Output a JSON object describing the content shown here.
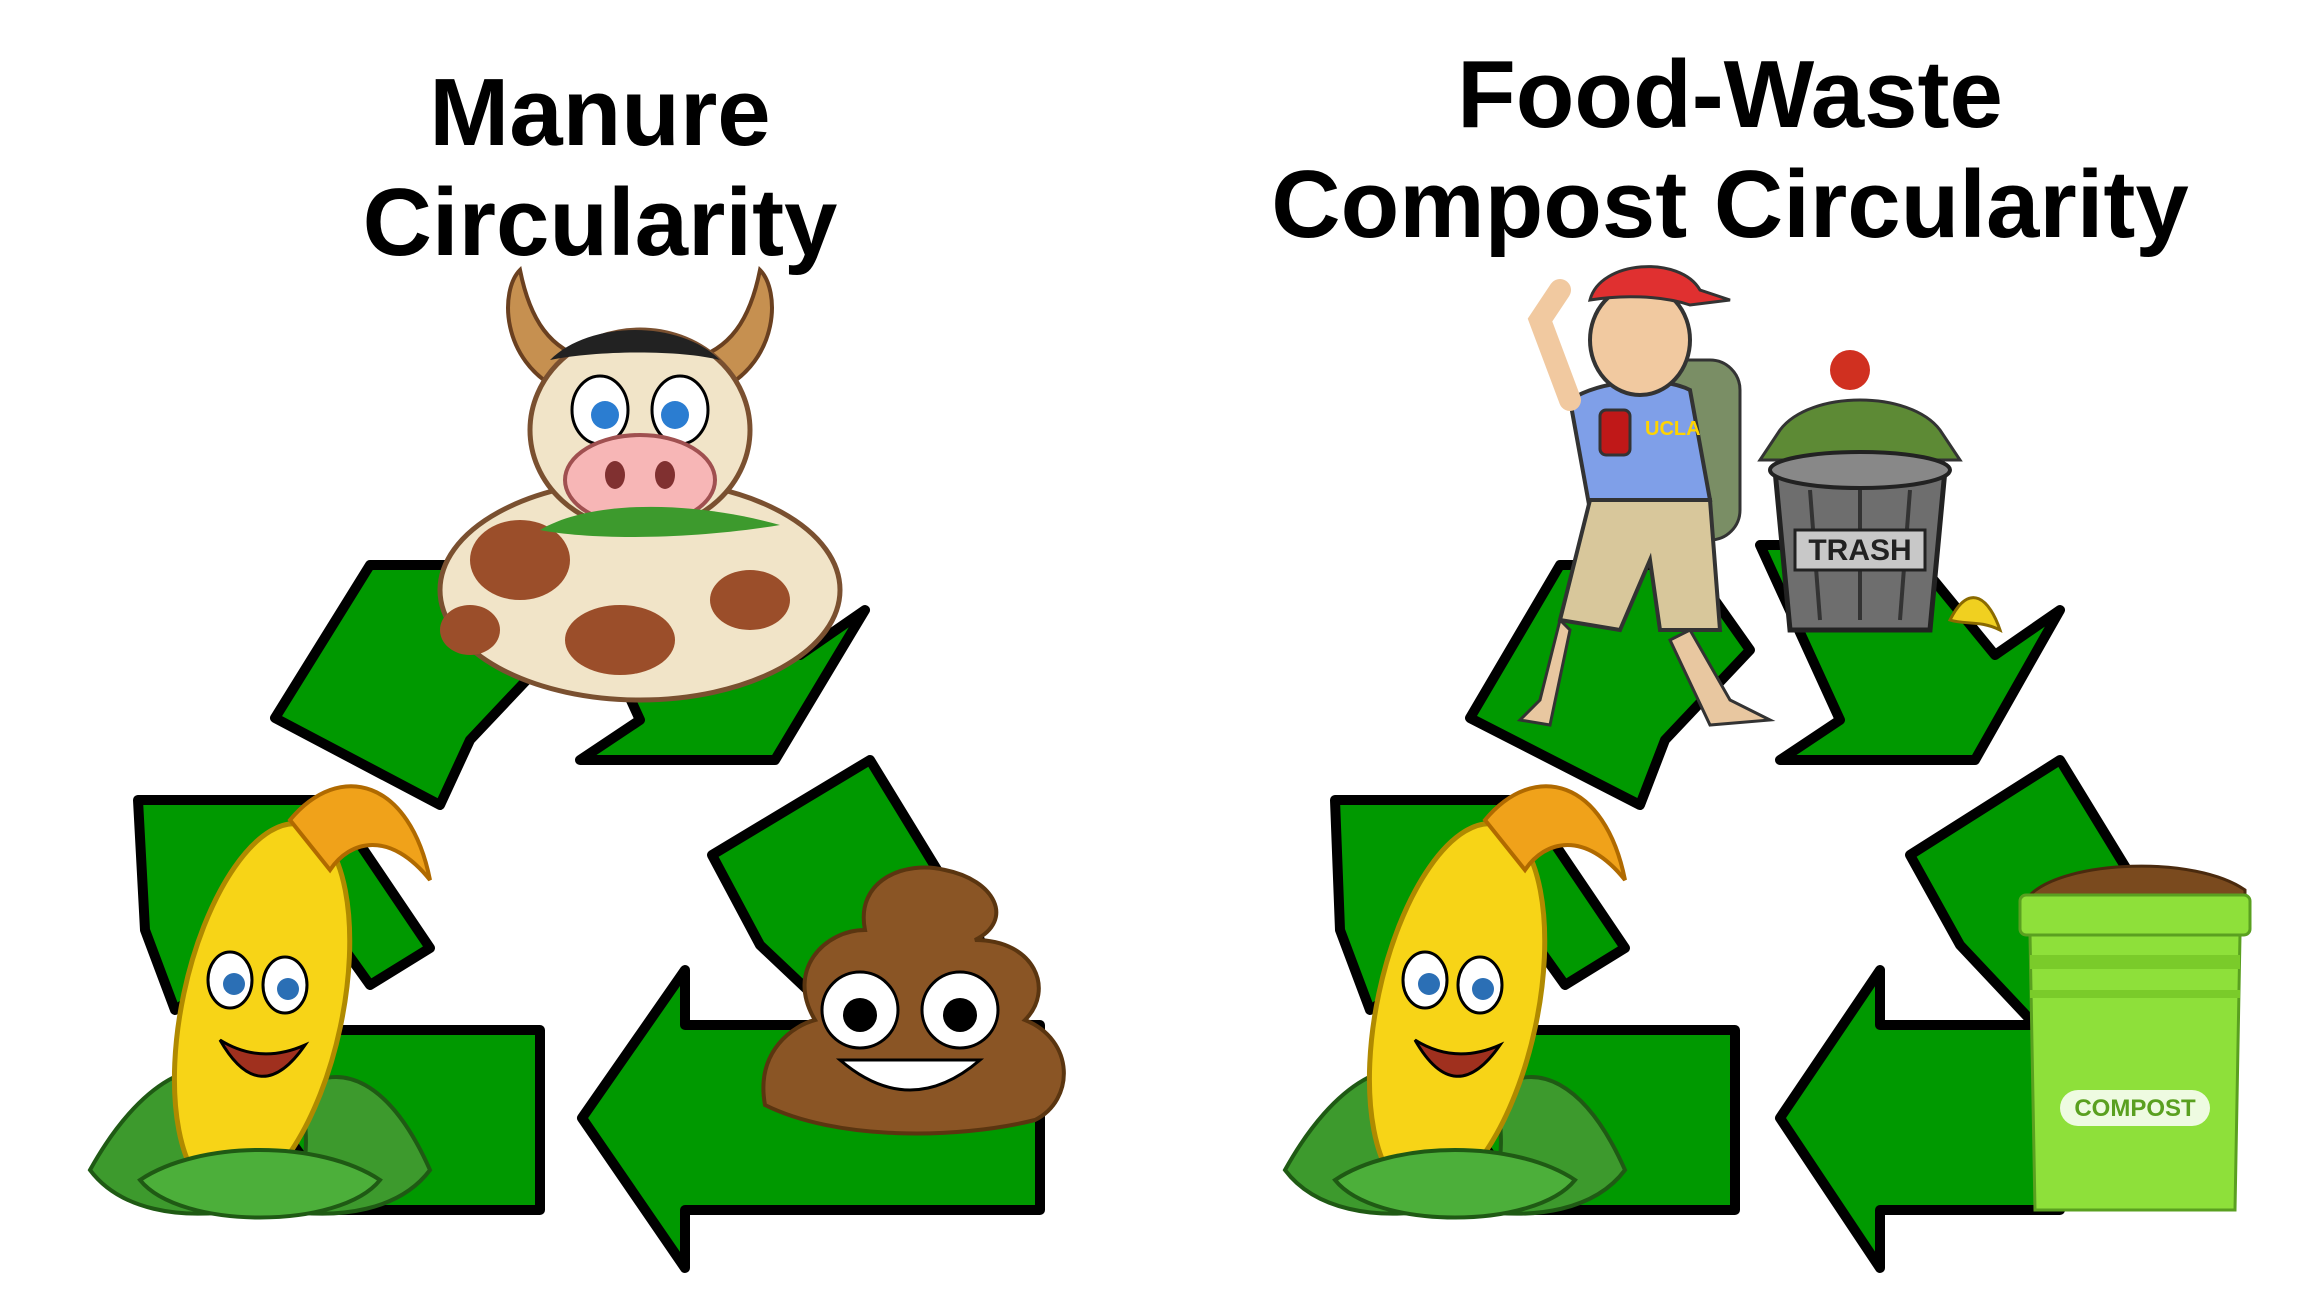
{
  "titles": {
    "left": {
      "line1": "Manure",
      "line2": "Circularity"
    },
    "right": {
      "line1": "Food-Waste",
      "line2": "Compost Circularity"
    }
  },
  "labels": {
    "trash": "TRASH",
    "compost": "COMPOST",
    "shirt": "UCLA"
  },
  "icons": {
    "left_top": "cow-icon",
    "left_bottom_left": "corn-icon",
    "left_bottom_right": "poop-emoji-icon",
    "right_top": "man-littering-icon",
    "right_top_bin": "trash-can-icon",
    "right_bottom_left": "corn-icon",
    "right_bottom_right": "compost-bin-icon"
  },
  "colors": {
    "arrow": "#009900",
    "arrow_outline": "#000000",
    "compost_bin": "#8ee03a"
  }
}
